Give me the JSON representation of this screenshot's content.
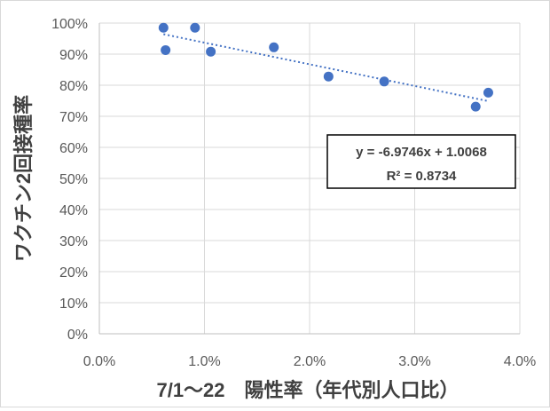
{
  "chart_data": {
    "type": "scatter",
    "xlabel": "7/1～22　陽性率（年代別人口比）",
    "ylabel": "ワクチン2回接種率",
    "xlim": [
      0,
      0.04
    ],
    "ylim": [
      0,
      1.0
    ],
    "x_ticks": [
      0,
      0.01,
      0.02,
      0.03,
      0.04
    ],
    "x_tick_labels": [
      "0.0%",
      "1.0%",
      "2.0%",
      "3.0%",
      "4.0%"
    ],
    "y_ticks": [
      0,
      0.1,
      0.2,
      0.3,
      0.4,
      0.5,
      0.6,
      0.7,
      0.8,
      0.9,
      1.0
    ],
    "y_tick_labels": [
      "0%",
      "10%",
      "20%",
      "30%",
      "40%",
      "50%",
      "60%",
      "70%",
      "80%",
      "90%",
      "100%"
    ],
    "grid": true,
    "points": [
      {
        "x": 0.0061,
        "y": 0.985
      },
      {
        "x": 0.0063,
        "y": 0.913
      },
      {
        "x": 0.0091,
        "y": 0.985
      },
      {
        "x": 0.0106,
        "y": 0.908
      },
      {
        "x": 0.0166,
        "y": 0.922
      },
      {
        "x": 0.0218,
        "y": 0.828
      },
      {
        "x": 0.0271,
        "y": 0.812
      },
      {
        "x": 0.0358,
        "y": 0.731
      },
      {
        "x": 0.037,
        "y": 0.776
      }
    ],
    "trendline": {
      "type": "linear",
      "slope": -6.9746,
      "intercept": 1.0068,
      "x_from": 0.0061,
      "x_to": 0.037,
      "equation_label": "y = -6.9746x + 1.0068",
      "r2_label": "R² = 0.8734"
    },
    "colors": {
      "point": "#4472c4",
      "trendline": "#4472c4",
      "grid": "#d9d9d9",
      "axis": "#bfbfbf"
    }
  }
}
